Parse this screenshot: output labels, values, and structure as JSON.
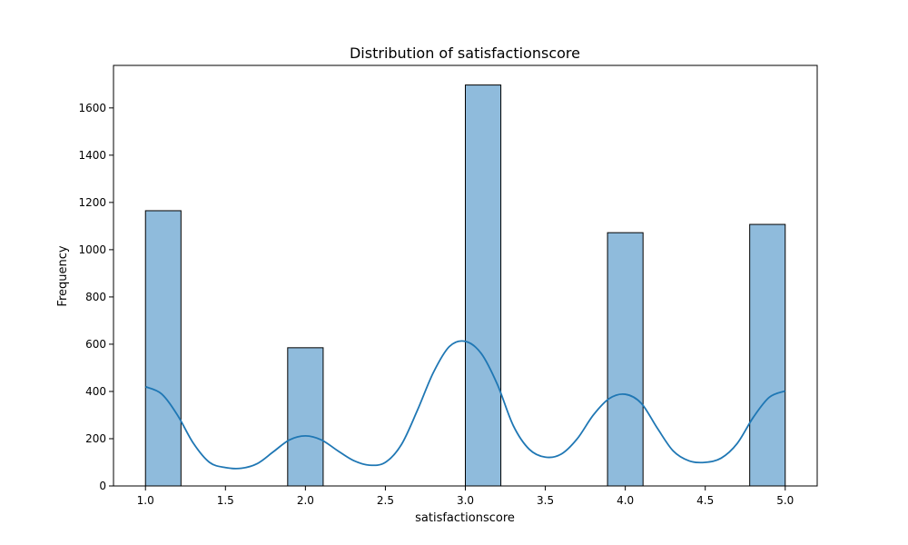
{
  "chart_data": {
    "type": "bar",
    "title": "Distribution of satisfactionscore",
    "xlabel": "satisfactionscore",
    "ylabel": "Frequency",
    "xlim": [
      0.8,
      5.2
    ],
    "ylim": [
      0,
      1780
    ],
    "x_ticks": [
      1.0,
      1.5,
      2.0,
      2.5,
      3.0,
      3.5,
      4.0,
      4.5,
      5.0
    ],
    "x_tick_labels": [
      "1.0",
      "1.5",
      "2.0",
      "2.5",
      "3.0",
      "3.5",
      "4.0",
      "4.5",
      "5.0"
    ],
    "y_ticks": [
      0,
      200,
      400,
      600,
      800,
      1000,
      1200,
      1400,
      1600
    ],
    "y_tick_labels": [
      "0",
      "200",
      "400",
      "600",
      "800",
      "1000",
      "1200",
      "1400",
      "1600"
    ],
    "bins": [
      {
        "x0": 1.0,
        "x1": 1.222,
        "count": 1165
      },
      {
        "x0": 1.889,
        "x1": 2.111,
        "count": 585
      },
      {
        "x0": 3.0,
        "x1": 3.222,
        "count": 1697
      },
      {
        "x0": 3.889,
        "x1": 4.111,
        "count": 1072
      },
      {
        "x0": 4.778,
        "x1": 5.0,
        "count": 1107
      }
    ],
    "kde": {
      "x": [
        1.0,
        1.1,
        1.2,
        1.3,
        1.4,
        1.5,
        1.6,
        1.7,
        1.8,
        1.9,
        2.0,
        2.1,
        2.2,
        2.3,
        2.4,
        2.5,
        2.6,
        2.7,
        2.8,
        2.9,
        3.0,
        3.1,
        3.2,
        3.3,
        3.4,
        3.5,
        3.6,
        3.7,
        3.8,
        3.9,
        4.0,
        4.1,
        4.2,
        4.3,
        4.4,
        4.5,
        4.6,
        4.7,
        4.8,
        4.9,
        5.0
      ],
      "y": [
        420,
        390,
        300,
        180,
        100,
        78,
        75,
        95,
        145,
        195,
        212,
        195,
        150,
        108,
        88,
        100,
        175,
        320,
        480,
        590,
        612,
        560,
        430,
        255,
        155,
        122,
        135,
        200,
        300,
        370,
        388,
        350,
        245,
        148,
        106,
        100,
        118,
        180,
        290,
        375,
        402
      ]
    },
    "bar_color": "#8fbbdc",
    "bar_edge_color": "#000000",
    "kde_color": "#1f77b4",
    "grid": false,
    "legend": "none"
  }
}
